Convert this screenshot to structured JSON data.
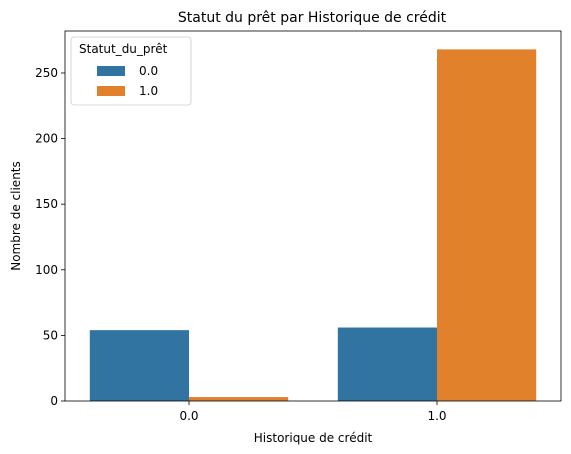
{
  "chart_data": {
    "type": "bar",
    "title": "Statut du prêt par Historique de crédit",
    "xlabel": "Historique de crédit",
    "ylabel": "Nombre de clients",
    "categories": [
      "0.0",
      "1.0"
    ],
    "series": [
      {
        "name": "0.0",
        "color": "#3274a1",
        "values": [
          54,
          56
        ]
      },
      {
        "name": "1.0",
        "color": "#e1812c",
        "values": [
          3,
          268
        ]
      }
    ],
    "ylim": [
      0,
      282
    ],
    "yticks": [
      0,
      50,
      100,
      150,
      200,
      250
    ],
    "legend": {
      "title": "Statut_du_prêt",
      "placement": "upper-left"
    },
    "grid": false
  }
}
